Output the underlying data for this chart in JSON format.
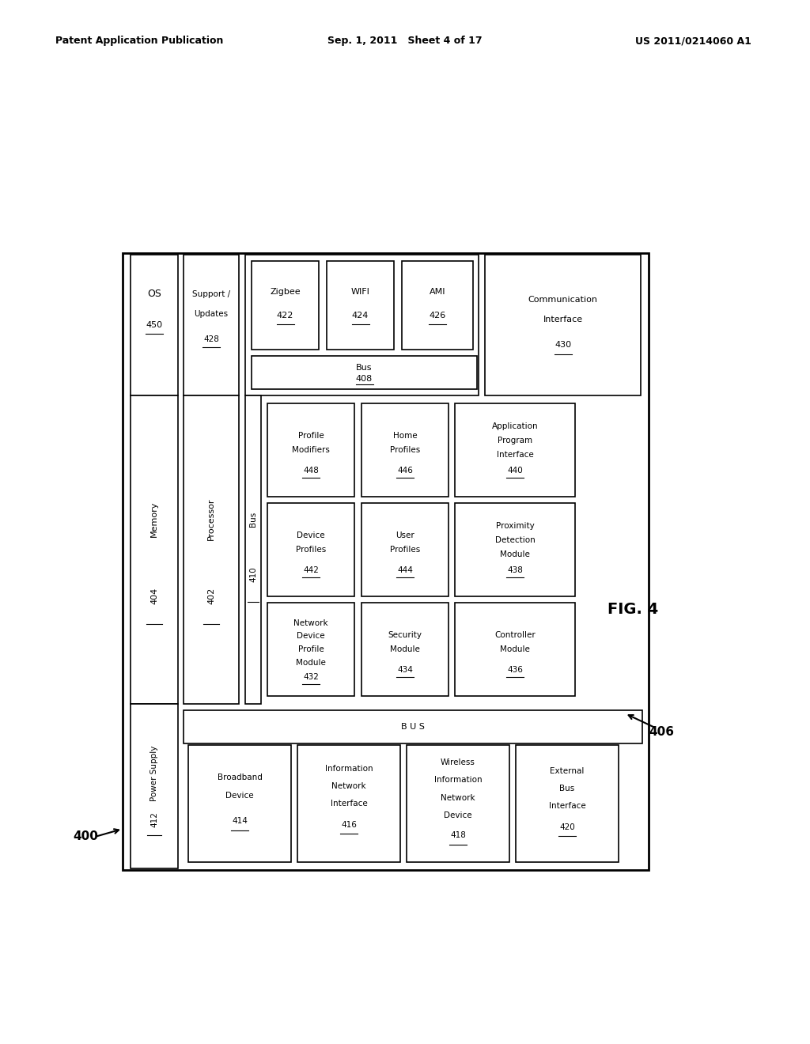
{
  "header_left": "Patent Application Publication",
  "header_center": "Sep. 1, 2011   Sheet 4 of 17",
  "header_right": "US 2011/0214060 A1",
  "fig_label": "FIG. 4",
  "label_400": "400",
  "label_406": "406",
  "bg_color": "#ffffff",
  "box_edge_color": "#000000",
  "text_color": "#000000",
  "lw": 1.2
}
